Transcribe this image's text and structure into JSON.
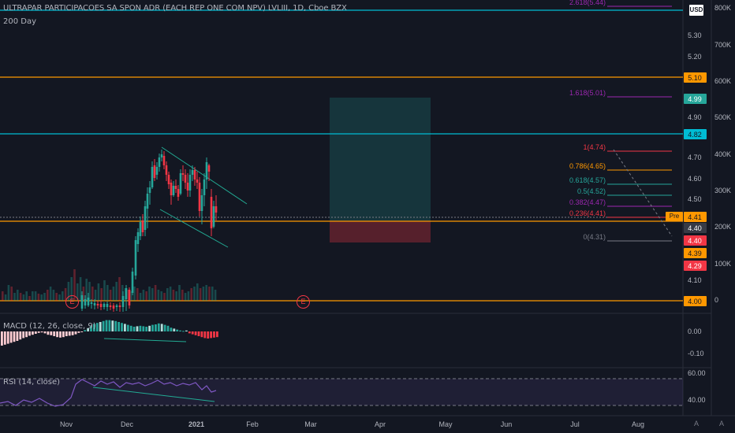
{
  "header": {
    "symbol_title": "ULTRAPAR PARTICIPACOES SA SPON ADR (EACH REP ONE COM NPV) LVLIII, 1D, Cboe BZX",
    "ma_label": "200 Day",
    "currency": "USD"
  },
  "price_axis": {
    "ticks": [
      "5.30",
      "5.20",
      "4.90",
      "4.70",
      "4.60",
      "4.50",
      "4.10",
      "4.00"
    ],
    "badges": [
      {
        "label": "5.10",
        "bg": "#ff9800",
        "fg": "#131722"
      },
      {
        "label": "4.99",
        "bg": "#26a69a",
        "fg": "#ffffff"
      },
      {
        "label": "4.82",
        "bg": "#00bcd4",
        "fg": "#131722"
      },
      {
        "label": "4.41",
        "bg": "#ff9800",
        "fg": "#131722"
      },
      {
        "label": "4.40",
        "bg": "#363a45",
        "fg": "#ffffff"
      },
      {
        "label": "4.40",
        "bg": "#f23645",
        "fg": "#ffffff"
      },
      {
        "label": "4.39",
        "bg": "#ff9800",
        "fg": "#131722"
      },
      {
        "label": "4.29",
        "bg": "#f23645",
        "fg": "#ffffff"
      },
      {
        "label": "4.00",
        "bg": "#ff9800",
        "fg": "#131722"
      }
    ],
    "pre_label": "Pre"
  },
  "volume_axis": {
    "ticks": [
      "800K",
      "700K",
      "600K",
      "500K",
      "400K",
      "300K",
      "200K",
      "100K",
      "0"
    ]
  },
  "fibonacci": [
    {
      "label": "2.618(5.44)",
      "color": "#9c27b0"
    },
    {
      "label": "1.618(5.01)",
      "color": "#9c27b0"
    },
    {
      "label": "1(4.74)",
      "color": "#f23645"
    },
    {
      "label": "0.786(4.65)",
      "color": "#ff9800"
    },
    {
      "label": "0.618(4.57)",
      "color": "#26a69a"
    },
    {
      "label": "0.5(4.52)",
      "color": "#26a69a"
    },
    {
      "label": "0.382(4.47)",
      "color": "#9c27b0"
    },
    {
      "label": "0.236(4.41)",
      "color": "#f23645"
    },
    {
      "label": "0(4.31)",
      "color": "#787b86"
    }
  ],
  "earnings_marker": "E",
  "macd": {
    "label": "MACD (12, 26, close, 9)",
    "ticks": [
      "0.00",
      "-0.10"
    ]
  },
  "rsi": {
    "label": "RSI (14, close)",
    "ticks": [
      "60.00",
      "40.00"
    ]
  },
  "time_axis": {
    "ticks": [
      "Nov",
      "Dec",
      "2021",
      "Feb",
      "Mar",
      "Apr",
      "May",
      "Jun",
      "Jul",
      "Aug"
    ]
  },
  "controls": {
    "scale_log": "A",
    "scale_auto": "A"
  },
  "colors": {
    "up": "#26a69a",
    "down": "#f23645",
    "orange_line": "#ff9800",
    "cyan_line": "#00bcd4"
  }
}
